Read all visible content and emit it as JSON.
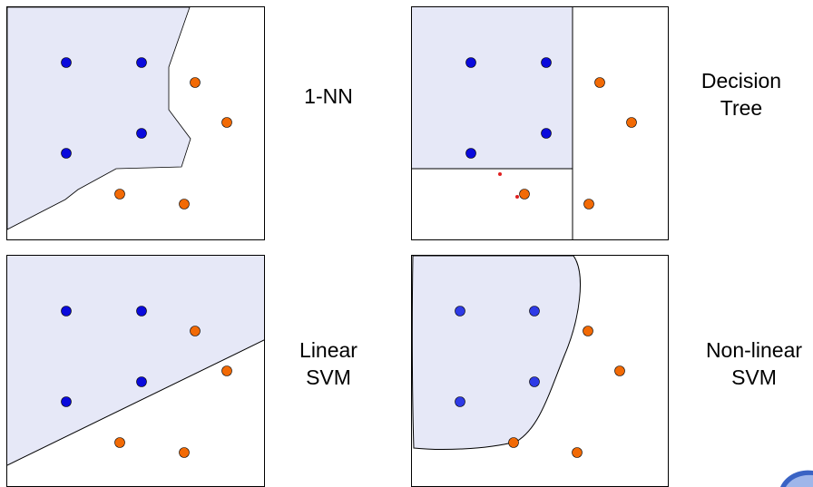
{
  "colors": {
    "region_fill": "#e6e8f7",
    "class_a": "#0a0adc",
    "class_a_alt": "#2e3ae6",
    "class_b": "#f26a05",
    "extra_point": "#e02020",
    "border": "#000000"
  },
  "panels": [
    {
      "id": "1nn",
      "label_lines": [
        "1-NN"
      ]
    },
    {
      "id": "tree",
      "label_lines": [
        "Decision",
        "Tree"
      ]
    },
    {
      "id": "linear-svm",
      "label_lines": [
        "Linear",
        "SVM"
      ]
    },
    {
      "id": "nonlinear-svm",
      "label_lines": [
        "Non-linear",
        "SVM"
      ]
    }
  ]
}
